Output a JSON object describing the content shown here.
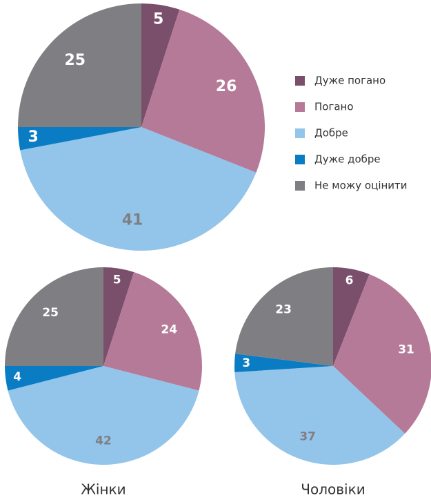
{
  "chart_data": [
    {
      "type": "pie",
      "categories": [
        "Дуже погано",
        "Погано",
        "Добре",
        "Дуже добре",
        "Не можу оцінити"
      ],
      "values": [
        5,
        26,
        41,
        3,
        25
      ],
      "colors": [
        "#7a4f6b",
        "#b57a98",
        "#93c4ea",
        "#0a7cc4",
        "#7f7f83"
      ],
      "legend": "right"
    },
    {
      "type": "pie",
      "title": "Жінки",
      "categories": [
        "Дуже погано",
        "Погано",
        "Добре",
        "Дуже добре",
        "Не можу оцінити"
      ],
      "values": [
        5,
        24,
        42,
        4,
        25
      ],
      "colors": [
        "#7a4f6b",
        "#b57a98",
        "#93c4ea",
        "#0a7cc4",
        "#7f7f83"
      ]
    },
    {
      "type": "pie",
      "title": "Чоловіки",
      "categories": [
        "Дуже погано",
        "Погано",
        "Добре",
        "Дуже добре",
        "Не можу оцінити"
      ],
      "values": [
        6,
        31,
        37,
        3,
        23
      ],
      "colors": [
        "#7a4f6b",
        "#b57a98",
        "#93c4ea",
        "#0a7cc4",
        "#7f7f83"
      ]
    }
  ]
}
